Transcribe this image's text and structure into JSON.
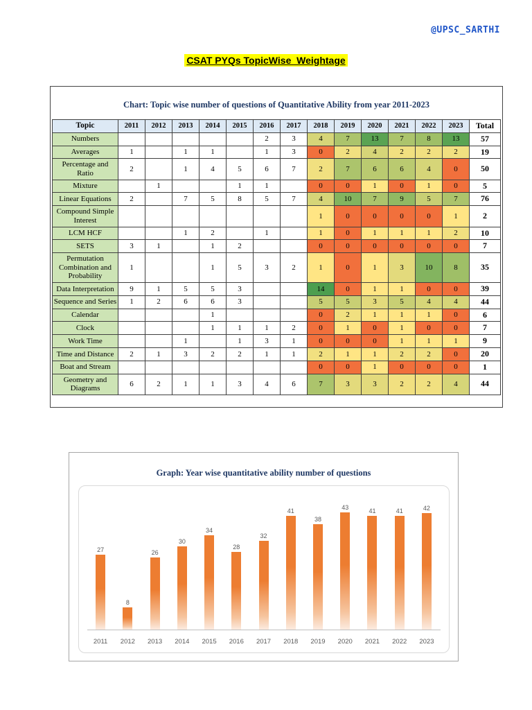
{
  "page": {
    "handle": "@UPSC_SARTHI",
    "heading": "CSAT PYQs TopicWise  Weightage"
  },
  "table": {
    "title": "Chart: Topic wise number of questions of Quantitative Ability from year 2011-2023",
    "columns": [
      "Topic",
      "2011",
      "2012",
      "2013",
      "2014",
      "2015",
      "2016",
      "2017",
      "2018",
      "2019",
      "2020",
      "2021",
      "2022",
      "2023",
      "Total"
    ],
    "heatmap_columns_start": "2018",
    "rows": [
      {
        "topic": "Numbers",
        "values": [
          null,
          null,
          null,
          null,
          null,
          2,
          3,
          4,
          7,
          13,
          7,
          8,
          13
        ],
        "total": 57
      },
      {
        "topic": "Averages",
        "values": [
          1,
          null,
          1,
          1,
          null,
          1,
          3,
          0,
          2,
          4,
          2,
          2,
          2
        ],
        "total": 19
      },
      {
        "topic": "Percentage and Ratio",
        "values": [
          2,
          null,
          1,
          4,
          5,
          6,
          7,
          2,
          7,
          6,
          6,
          4,
          0
        ],
        "total": 50
      },
      {
        "topic": "Mixture",
        "values": [
          null,
          1,
          null,
          null,
          1,
          1,
          null,
          0,
          0,
          1,
          0,
          1,
          0
        ],
        "total": 5
      },
      {
        "topic": "Linear Equations",
        "values": [
          2,
          null,
          7,
          5,
          8,
          5,
          7,
          4,
          10,
          7,
          9,
          5,
          7
        ],
        "total": 76
      },
      {
        "topic": "Compound Simple Interest",
        "values": [
          null,
          null,
          null,
          null,
          null,
          null,
          null,
          1,
          0,
          0,
          0,
          0,
          1
        ],
        "total": 2
      },
      {
        "topic": "LCM HCF",
        "values": [
          null,
          null,
          1,
          2,
          null,
          1,
          null,
          1,
          0,
          1,
          1,
          1,
          2
        ],
        "total": 10
      },
      {
        "topic": "SETS",
        "values": [
          3,
          1,
          null,
          1,
          2,
          null,
          null,
          0,
          0,
          0,
          0,
          0,
          0
        ],
        "total": 7
      },
      {
        "topic": "Permutation Combination and Probability",
        "values": [
          1,
          null,
          null,
          1,
          5,
          3,
          2,
          1,
          0,
          1,
          3,
          10,
          8
        ],
        "total": 35
      },
      {
        "topic": "Data Interpretation",
        "values": [
          9,
          1,
          5,
          5,
          3,
          null,
          null,
          14,
          0,
          1,
          1,
          0,
          0
        ],
        "total": 39
      },
      {
        "topic": "Sequence and Series",
        "values": [
          1,
          2,
          6,
          6,
          3,
          null,
          null,
          5,
          5,
          3,
          5,
          4,
          4
        ],
        "total": 44
      },
      {
        "topic": "Calendar",
        "values": [
          null,
          null,
          null,
          1,
          null,
          null,
          null,
          0,
          2,
          1,
          1,
          1,
          0
        ],
        "total": 6
      },
      {
        "topic": "Clock",
        "values": [
          null,
          null,
          null,
          1,
          1,
          1,
          2,
          0,
          1,
          0,
          1,
          0,
          0
        ],
        "total": 7
      },
      {
        "topic": "Work Time",
        "values": [
          null,
          null,
          1,
          null,
          1,
          3,
          1,
          0,
          0,
          0,
          1,
          1,
          1
        ],
        "total": 9
      },
      {
        "topic": "Time and Distance",
        "values": [
          2,
          1,
          3,
          2,
          2,
          1,
          1,
          2,
          1,
          1,
          2,
          2,
          0
        ],
        "total": 20
      },
      {
        "topic": "Boat and Stream",
        "values": [
          null,
          null,
          null,
          null,
          null,
          null,
          null,
          0,
          0,
          1,
          0,
          0,
          0
        ],
        "total": 1
      },
      {
        "topic": "Geometry and Diagrams",
        "values": [
          6,
          2,
          1,
          1,
          3,
          4,
          6,
          7,
          3,
          3,
          2,
          2,
          4
        ],
        "total": 44
      }
    ]
  },
  "chart_data": {
    "type": "bar",
    "title": "Graph: Year wise quantitative ability number of questions",
    "categories": [
      "2011",
      "2012",
      "2013",
      "2014",
      "2015",
      "2016",
      "2017",
      "2018",
      "2019",
      "2020",
      "2021",
      "2022",
      "2023"
    ],
    "values": [
      27,
      8,
      26,
      30,
      34,
      28,
      32,
      41,
      38,
      43,
      41,
      41,
      42
    ],
    "xlabel": "",
    "ylabel": "",
    "ylim": [
      0,
      45
    ],
    "grid": false,
    "legend": false,
    "data_labels": true,
    "bar_color": "#ED7D31"
  },
  "colors": {
    "accent_blue": "#1F55C8",
    "highlight_yellow": "#FFFF00",
    "title_navy": "#1F3864",
    "topic_cell_green": "#CDE4B5",
    "header_cell_blue": "#DDE9F5",
    "heat_low": "#F1703C",
    "heat_mid": "#FFE584",
    "heat_high": "#4C9E4F"
  }
}
